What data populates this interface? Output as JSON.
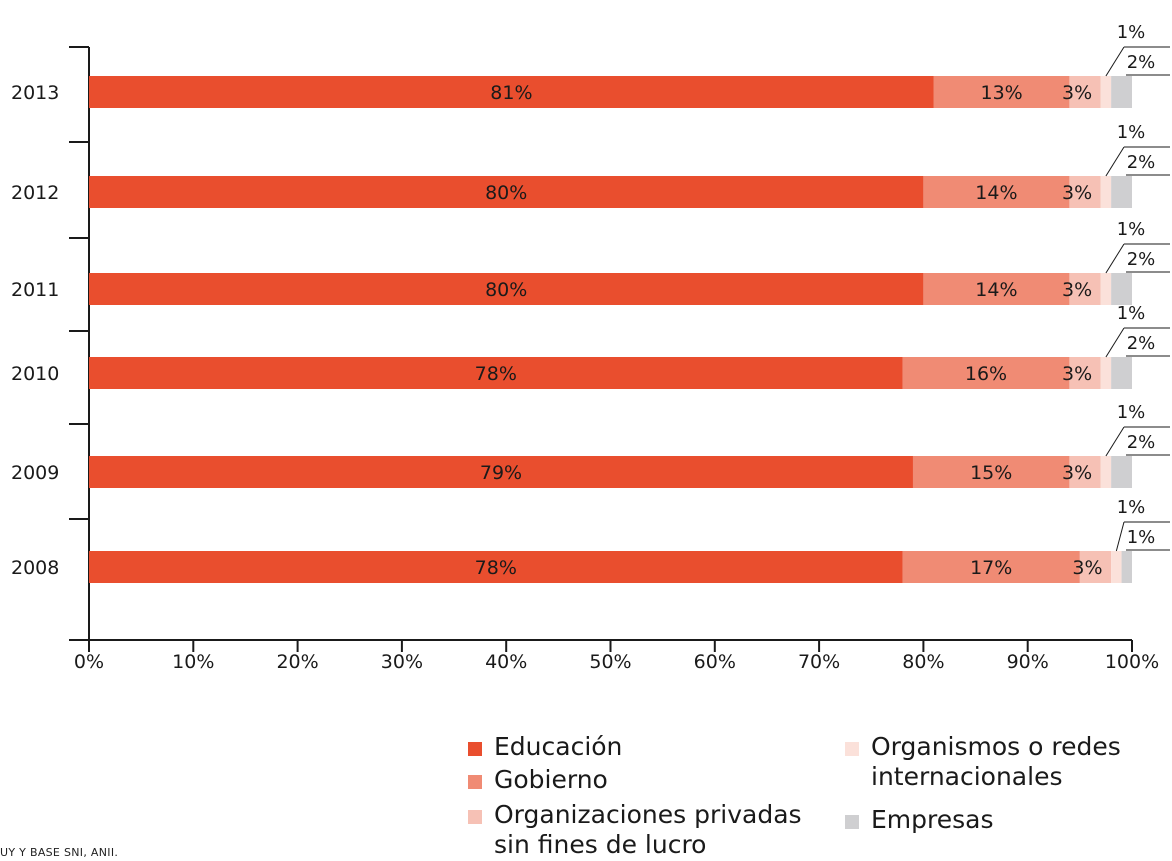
{
  "chart_data": {
    "type": "bar",
    "orientation": "horizontal",
    "stacked": true,
    "categories": [
      "2013",
      "2012",
      "2011",
      "2010",
      "2009",
      "2008"
    ],
    "series": [
      {
        "name": "Educación",
        "color": "#e94e2e",
        "values": [
          81,
          80,
          80,
          78,
          79,
          78
        ],
        "labels": [
          "81%",
          "80%",
          "80%",
          "78%",
          "79%",
          "78%"
        ]
      },
      {
        "name": "Gobierno",
        "color": "#f08b74",
        "values": [
          13,
          14,
          14,
          16,
          15,
          17
        ],
        "labels": [
          "13%",
          "14%",
          "14%",
          "16%",
          "15%",
          "17%"
        ]
      },
      {
        "name": "Organizaciones privadas sin fines de lucro",
        "color": "#f6c1b5",
        "values": [
          3,
          3,
          3,
          3,
          3,
          3
        ],
        "labels": [
          "3%",
          "3%",
          "3%",
          "3%",
          "3%",
          "3%"
        ]
      },
      {
        "name": "Organismos o redes internacionales",
        "color": "#fbe1da",
        "values": [
          1,
          1,
          1,
          1,
          1,
          1
        ],
        "labels": [
          "1%",
          "1%",
          "1%",
          "1%",
          "1%",
          "1%"
        ]
      },
      {
        "name": "Empresas",
        "color": "#cfcfd1",
        "values": [
          2,
          2,
          2,
          2,
          2,
          1
        ],
        "labels": [
          "2%",
          "2%",
          "2%",
          "2%",
          "2%",
          "1%"
        ]
      }
    ],
    "xticks": [
      "0%",
      "10%",
      "20%",
      "30%",
      "40%",
      "50%",
      "60%",
      "70%",
      "80%",
      "90%",
      "100%"
    ],
    "xlim": [
      0,
      100
    ],
    "legend_position": "bottom-right",
    "grid": false
  },
  "legend": {
    "col1": [
      "Educación",
      "Gobierno",
      "Organizaciones privadas sin fines de lucro"
    ],
    "col2": [
      "Organismos o redes internacionales",
      "Empresas"
    ]
  },
  "source_note": "UY Y BASE SNI, ANII."
}
